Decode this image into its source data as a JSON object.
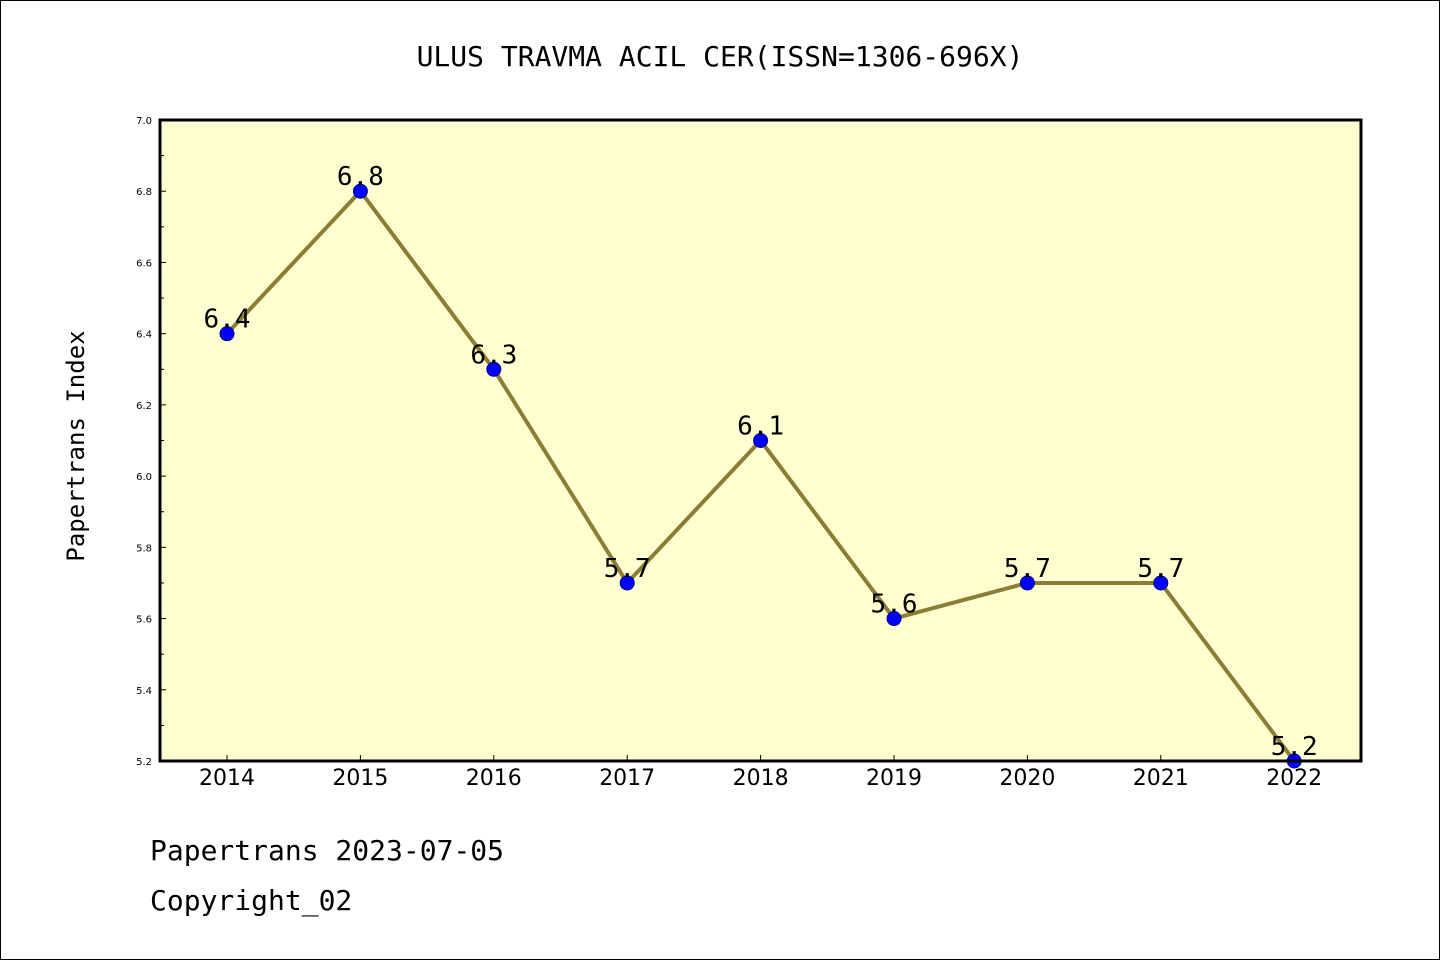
{
  "chart_data": {
    "type": "line",
    "title": "ULUS TRAVMA ACIL CER(ISSN=1306-696X)",
    "xlabel": "",
    "ylabel": "Papertrans Index",
    "categories": [
      "2014",
      "2015",
      "2016",
      "2017",
      "2018",
      "2019",
      "2020",
      "2021",
      "2022"
    ],
    "series": [
      {
        "values": [
          6.4,
          6.8,
          6.3,
          5.7,
          6.1,
          5.6,
          5.7,
          5.7,
          5.2
        ],
        "data_labels": [
          "6.4",
          "6.8",
          "6.3",
          "5.7",
          "6.1",
          "5.6",
          "5.7",
          "5.7",
          "5.2"
        ]
      }
    ],
    "ylim": [
      5.2,
      7.0
    ],
    "yticks": [
      5.2,
      5.4,
      5.6,
      5.8,
      6.0,
      6.2,
      6.4,
      6.6,
      6.8,
      7.0
    ],
    "ytick_labels": [
      "5.2",
      "5.4",
      "5.6",
      "5.8",
      "6.0",
      "6.2",
      "6.4",
      "6.6",
      "6.8",
      "7.0"
    ],
    "grid": false,
    "colors": {
      "plot_background": "#ffffd0",
      "line": "#8c7d35",
      "marker_fill": "#0000ff",
      "marker_edge": "#00008b",
      "axes": "#000000"
    }
  },
  "footer": {
    "date_line": "Papertrans 2023-07-05",
    "copyright": "Copyright_02"
  }
}
